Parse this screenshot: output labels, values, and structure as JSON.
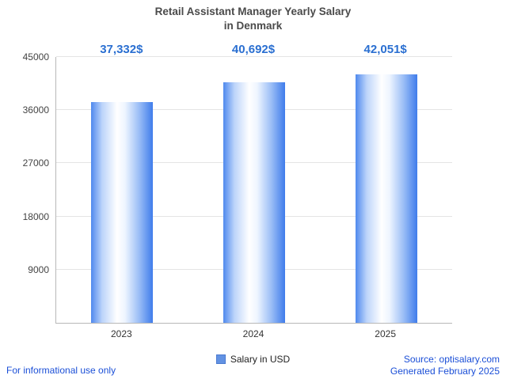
{
  "title": {
    "line1": "Retail Assistant Manager Yearly Salary",
    "line2": "in Denmark"
  },
  "chart_data": {
    "type": "bar",
    "title": "Retail Assistant Manager Yearly Salary in Denmark",
    "categories": [
      "2023",
      "2024",
      "2025"
    ],
    "values": [
      37332,
      40692,
      42051
    ],
    "value_labels": [
      "37,332$",
      "40,692$",
      "42,051$"
    ],
    "xlabel": "",
    "ylabel": "",
    "ylim": [
      0,
      45000
    ],
    "yticks": [
      9000,
      18000,
      27000,
      36000,
      45000
    ],
    "grid": true,
    "legend_position": "bottom",
    "legend": [
      {
        "label": "Salary in USD",
        "color": "#6292e3"
      }
    ]
  },
  "footer": {
    "left": "For informational use only",
    "source": "Source: optisalary.com",
    "generated": "Generated February 2025"
  },
  "colors": {
    "accent": "#2a6fd1",
    "bar_edge": "#3f7ceb",
    "link": "#1b4fd7",
    "gridline": "#e4e4e4"
  }
}
